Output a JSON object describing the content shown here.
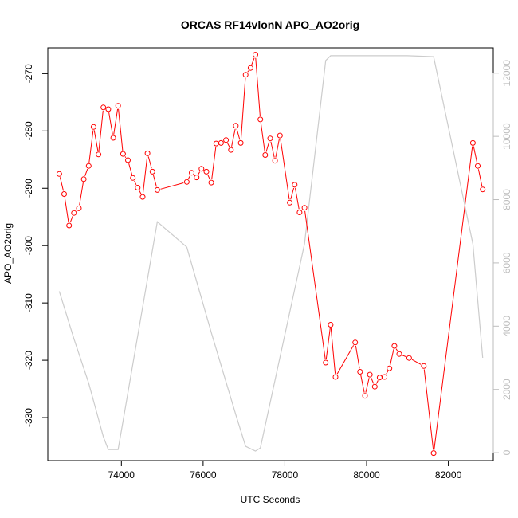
{
  "chart_data": {
    "type": "line",
    "title": "ORCAS RF14vlonN APO_AO2orig",
    "xlabel": "UTC Seconds",
    "ylabel": "APO_AO2orig",
    "xlim": [
      72200,
      83100
    ],
    "ylim": [
      -337.5,
      -265.5
    ],
    "y2lim": [
      -250,
      12800
    ],
    "x_ticks": [
      74000,
      76000,
      78000,
      80000,
      82000
    ],
    "y_ticks": [
      -330,
      -320,
      -310,
      -300,
      -290,
      -280,
      -270
    ],
    "y2_ticks": [
      0,
      2000,
      4000,
      6000,
      8000,
      10000,
      12000
    ],
    "grid": false,
    "series": [
      {
        "color": "#ff0000",
        "axis": "left",
        "style": "line+open-circles",
        "points": [
          [
            72480,
            -287.5
          ],
          [
            72600,
            -291.0
          ],
          [
            72720,
            -296.5
          ],
          [
            72840,
            -294.3
          ],
          [
            72960,
            -293.5
          ],
          [
            73080,
            -288.4
          ],
          [
            73200,
            -286.1
          ],
          [
            73320,
            -279.3
          ],
          [
            73440,
            -284.1
          ],
          [
            73560,
            -275.9
          ],
          [
            73680,
            -276.2
          ],
          [
            73800,
            -281.2
          ],
          [
            73920,
            -275.6
          ],
          [
            74040,
            -284.0
          ],
          [
            74160,
            -285.1
          ],
          [
            74280,
            -288.2
          ],
          [
            74400,
            -289.9
          ],
          [
            74520,
            -291.5
          ],
          [
            74640,
            -283.9
          ],
          [
            74760,
            -287.1
          ],
          [
            74880,
            -290.3
          ],
          [
            75600,
            -288.9
          ],
          [
            75720,
            -287.3
          ],
          [
            75840,
            -288.1
          ],
          [
            75960,
            -286.6
          ],
          [
            76080,
            -287.1
          ],
          [
            76200,
            -289.0
          ],
          [
            76320,
            -282.2
          ],
          [
            76440,
            -282.1
          ],
          [
            76560,
            -281.6
          ],
          [
            76680,
            -283.3
          ],
          [
            76800,
            -279.1
          ],
          [
            76920,
            -282.1
          ],
          [
            77040,
            -270.2
          ],
          [
            77160,
            -269.0
          ],
          [
            77280,
            -266.7
          ],
          [
            77400,
            -278.0
          ],
          [
            77520,
            -284.2
          ],
          [
            77640,
            -281.3
          ],
          [
            77760,
            -285.2
          ],
          [
            77880,
            -280.8
          ],
          [
            78120,
            -292.5
          ],
          [
            78240,
            -289.4
          ],
          [
            78360,
            -294.2
          ],
          [
            78480,
            -293.4
          ],
          [
            79000,
            -320.4
          ],
          [
            79120,
            -313.8
          ],
          [
            79240,
            -322.9
          ],
          [
            79720,
            -316.9
          ],
          [
            79840,
            -322.0
          ],
          [
            79960,
            -326.2
          ],
          [
            80080,
            -322.5
          ],
          [
            80200,
            -324.6
          ],
          [
            80320,
            -323.0
          ],
          [
            80440,
            -322.9
          ],
          [
            80560,
            -321.4
          ],
          [
            80680,
            -317.5
          ],
          [
            80800,
            -318.9
          ],
          [
            81040,
            -319.6
          ],
          [
            81400,
            -321.0
          ],
          [
            81640,
            -336.2
          ],
          [
            82600,
            -282.1
          ],
          [
            82720,
            -286.1
          ],
          [
            82840,
            -290.2
          ]
        ]
      },
      {
        "color": "#cccccc",
        "axis": "right",
        "style": "line",
        "points": [
          [
            72480,
            5100
          ],
          [
            72840,
            3600
          ],
          [
            73200,
            2200
          ],
          [
            73560,
            500
          ],
          [
            73680,
            100
          ],
          [
            73920,
            100
          ],
          [
            74040,
            1000
          ],
          [
            74880,
            7300
          ],
          [
            75600,
            6500
          ],
          [
            76200,
            3800
          ],
          [
            76800,
            1200
          ],
          [
            77040,
            200
          ],
          [
            77280,
            50
          ],
          [
            77400,
            150
          ],
          [
            78480,
            6600
          ],
          [
            79000,
            12400
          ],
          [
            79120,
            12550
          ],
          [
            80320,
            12550
          ],
          [
            81000,
            12550
          ],
          [
            81640,
            12520
          ],
          [
            82600,
            6600
          ],
          [
            82840,
            3000
          ]
        ]
      }
    ]
  }
}
